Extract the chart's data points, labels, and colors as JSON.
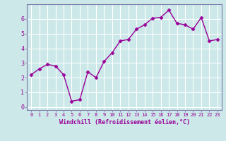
{
  "x": [
    0,
    1,
    2,
    3,
    4,
    5,
    6,
    7,
    8,
    9,
    10,
    11,
    12,
    13,
    14,
    15,
    16,
    17,
    18,
    19,
    20,
    21,
    22,
    23
  ],
  "y": [
    2.2,
    2.6,
    2.9,
    2.8,
    2.2,
    0.4,
    0.5,
    2.4,
    2.0,
    3.1,
    3.7,
    4.5,
    4.6,
    5.3,
    5.6,
    6.05,
    6.1,
    6.6,
    5.7,
    5.6,
    5.3,
    6.1,
    4.5,
    4.6
  ],
  "line_color": "#990099",
  "marker": "D",
  "marker_size": 2.5,
  "bg_color": "#cce8e8",
  "grid_color": "#ffffff",
  "xlabel": "Windchill (Refroidissement éolien,°C)",
  "xlabel_color": "#990099",
  "tick_color": "#990099",
  "label_color": "#990099",
  "spine_color": "#7777aa",
  "ylim": [
    -0.2,
    7.0
  ],
  "xlim": [
    -0.5,
    23.5
  ],
  "yticks": [
    0,
    1,
    2,
    3,
    4,
    5,
    6
  ],
  "xticks": [
    0,
    1,
    2,
    3,
    4,
    5,
    6,
    7,
    8,
    9,
    10,
    11,
    12,
    13,
    14,
    15,
    16,
    17,
    18,
    19,
    20,
    21,
    22,
    23
  ]
}
